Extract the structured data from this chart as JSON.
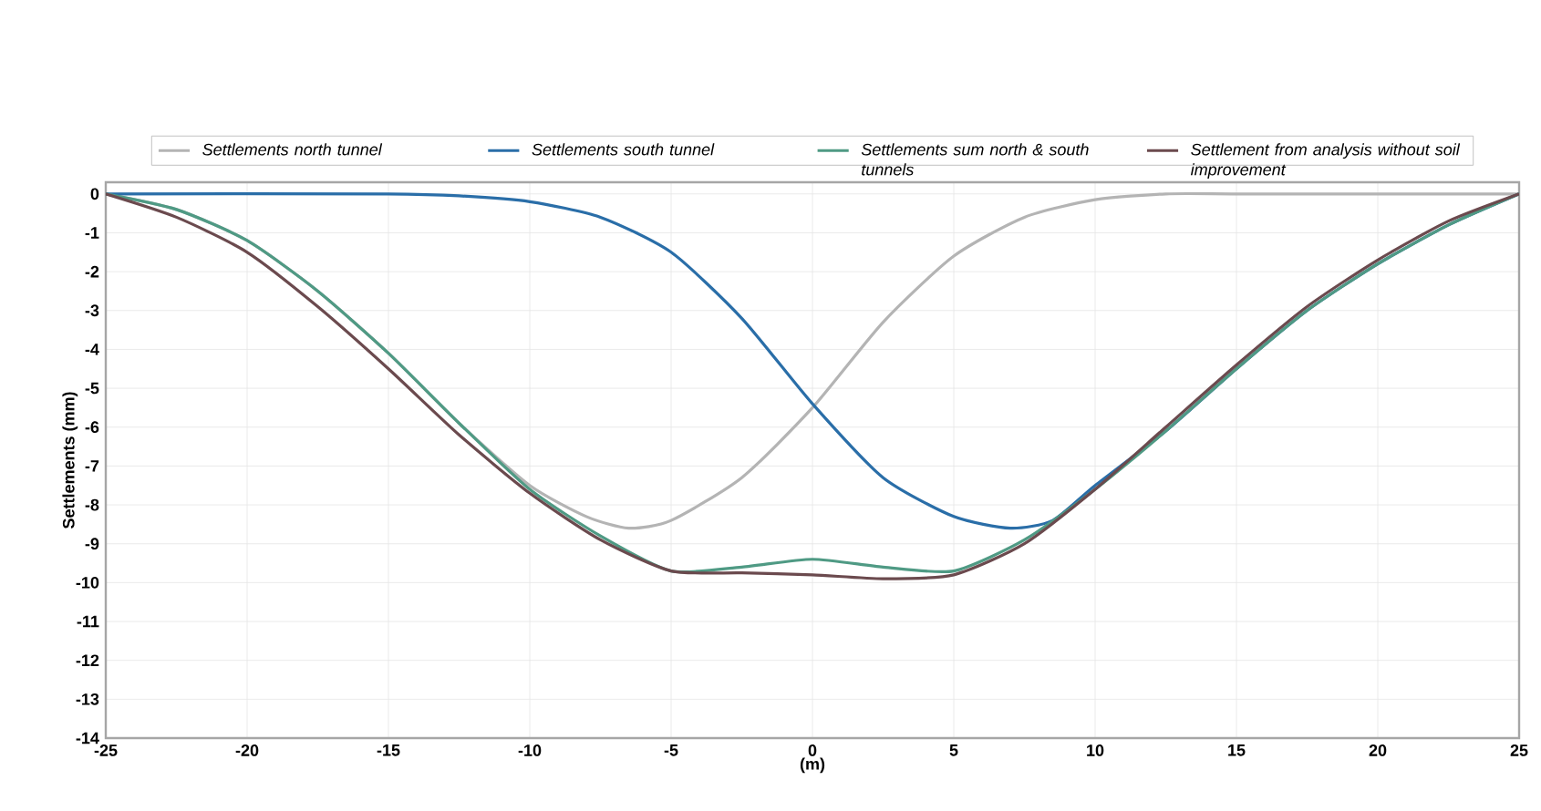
{
  "chart_data": {
    "type": "line",
    "xlabel": "(m)",
    "ylabel": "Settlements (mm)",
    "xlim": [
      -25,
      25
    ],
    "ylim": [
      -14,
      0.3
    ],
    "xticks": [
      -25,
      -20,
      -15,
      -10,
      -5,
      0,
      5,
      10,
      15,
      20,
      25
    ],
    "yticks": [
      0,
      -1,
      -2,
      -3,
      -4,
      -5,
      -6,
      -7,
      -8,
      -9,
      -10,
      -11,
      -12,
      -13,
      -14
    ],
    "grid": true,
    "legend": "top",
    "line_style": "solid",
    "marker": "none",
    "series": [
      {
        "name": "Settlements north tunnel",
        "color": "#b4b4b4",
        "x": [
          -25,
          -22.5,
          -20,
          -17.5,
          -15,
          -12.5,
          -10,
          -8,
          -6.5,
          -5,
          -2.5,
          0,
          2.5,
          5,
          7.5,
          10,
          12.5,
          15,
          20,
          25
        ],
        "values": [
          0,
          -0.4,
          -1.2,
          -2.5,
          -4.1,
          -5.9,
          -7.5,
          -8.3,
          -8.6,
          -8.4,
          -7.3,
          -5.5,
          -3.3,
          -1.6,
          -0.6,
          -0.15,
          0,
          0,
          0,
          0
        ]
      },
      {
        "name": "Settlements south tunnel",
        "color": "#2a6ea8",
        "x": [
          -25,
          -15,
          -12.5,
          -10,
          -7.5,
          -5,
          -2.5,
          0,
          2.5,
          5,
          7,
          8.5,
          10,
          12.5,
          15,
          17.5,
          20,
          22.5,
          25
        ],
        "values": [
          0,
          0,
          -0.05,
          -0.2,
          -0.6,
          -1.5,
          -3.2,
          -5.4,
          -7.3,
          -8.3,
          -8.6,
          -8.4,
          -7.5,
          -6.1,
          -4.5,
          -3.0,
          -1.8,
          -0.8,
          0
        ]
      },
      {
        "name": "Settlements sum north & south tunnels",
        "color": "#4f9a84",
        "x": [
          -25,
          -22.5,
          -20,
          -17.5,
          -15,
          -12.5,
          -10,
          -7.5,
          -5,
          -2.5,
          0,
          2.5,
          5,
          7.5,
          10,
          12.5,
          15,
          17.5,
          20,
          22.5,
          25
        ],
        "values": [
          0,
          -0.4,
          -1.2,
          -2.5,
          -4.1,
          -5.9,
          -7.6,
          -8.8,
          -9.7,
          -9.6,
          -9.4,
          -9.6,
          -9.7,
          -8.9,
          -7.6,
          -6.1,
          -4.5,
          -3.0,
          -1.8,
          -0.8,
          0
        ]
      },
      {
        "name": "Settlement from analysis without soil improvement",
        "color": "#6b4a4e",
        "x": [
          -25,
          -22.5,
          -20,
          -17.5,
          -15,
          -12.5,
          -10,
          -7.5,
          -5,
          -2.5,
          0,
          2.5,
          5,
          7.5,
          10,
          12.5,
          15,
          17.5,
          20,
          22.5,
          25
        ],
        "values": [
          0,
          -0.6,
          -1.5,
          -2.9,
          -4.5,
          -6.2,
          -7.7,
          -8.9,
          -9.7,
          -9.75,
          -9.8,
          -9.9,
          -9.8,
          -9.0,
          -7.6,
          -6.0,
          -4.4,
          -2.9,
          -1.7,
          -0.7,
          0
        ]
      }
    ]
  }
}
